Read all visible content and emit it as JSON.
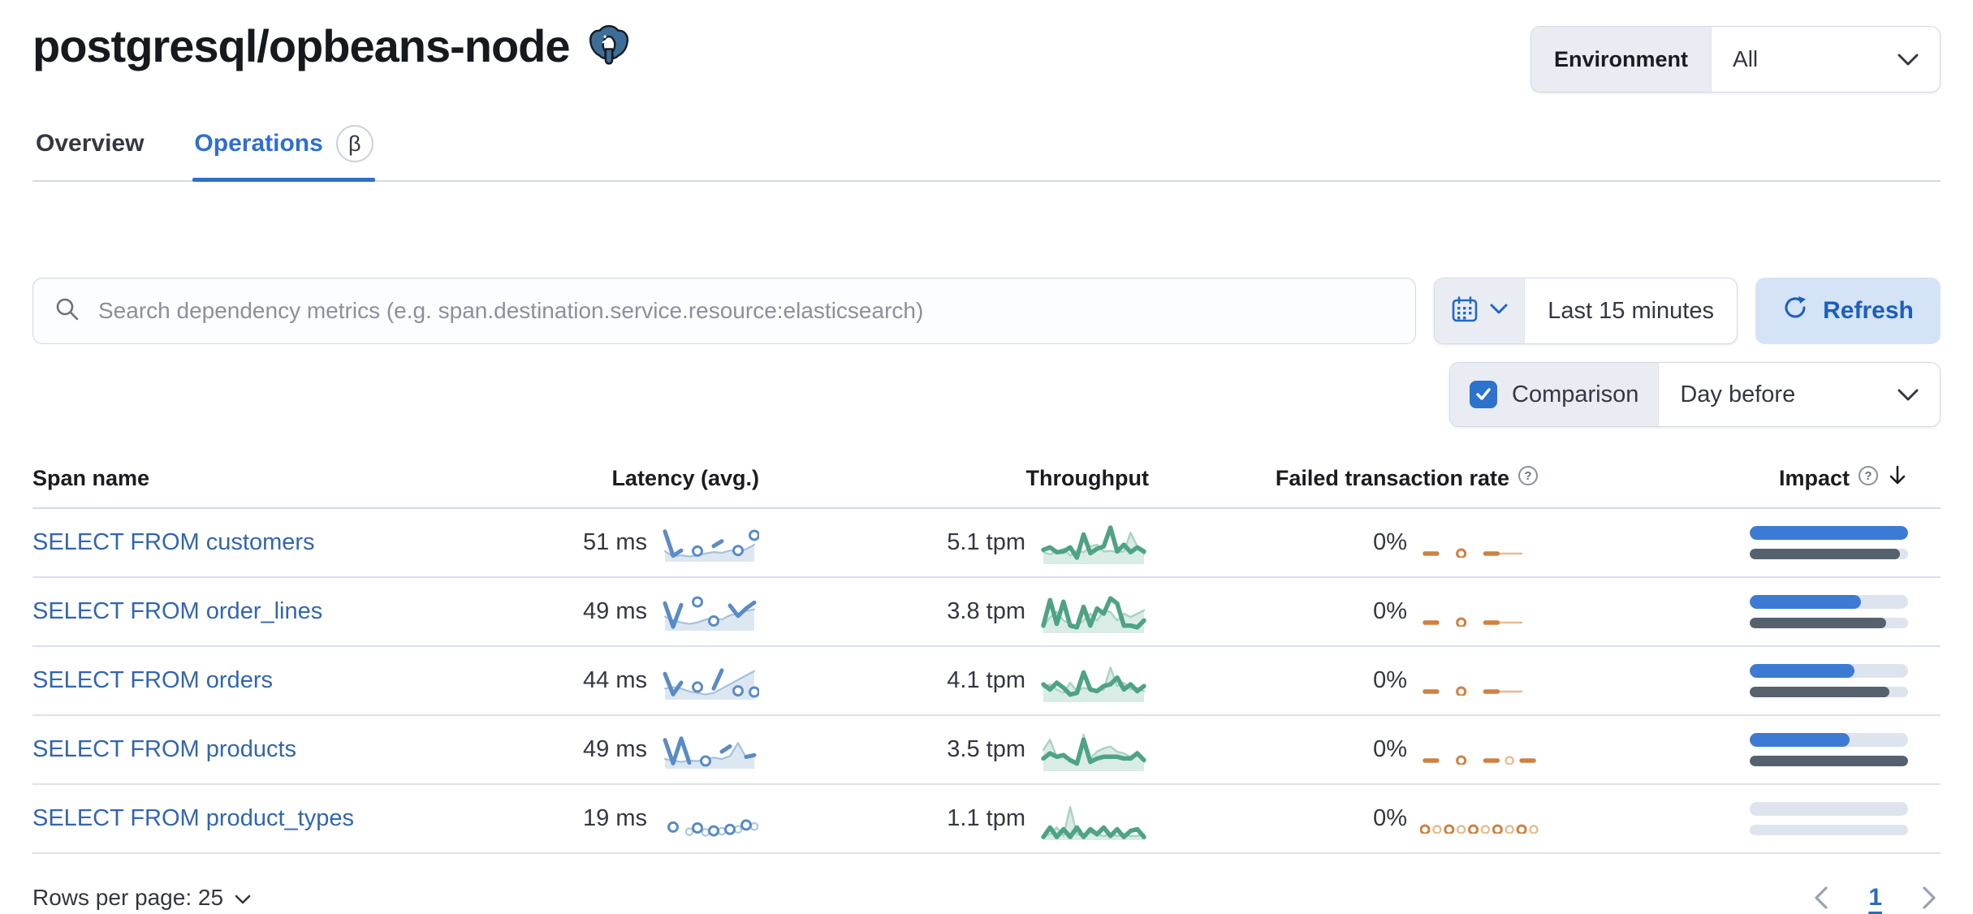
{
  "header": {
    "title": "postgresql/opbeans-node",
    "environment_label": "Environment",
    "environment_value": "All"
  },
  "tabs": {
    "overview": "Overview",
    "operations": "Operations",
    "beta_badge": "β"
  },
  "toolbar": {
    "search_placeholder": "Search dependency metrics (e.g. span.destination.service.resource:elasticsearch)",
    "time_range": "Last 15 minutes",
    "refresh_label": "Refresh",
    "comparison_label": "Comparison",
    "comparison_checked": true,
    "comparison_value": "Day before"
  },
  "table": {
    "columns": {
      "span_name": "Span name",
      "latency": "Latency (avg.)",
      "throughput": "Throughput",
      "failed_rate": "Failed transaction rate",
      "impact": "Impact"
    },
    "rows": [
      {
        "span_name": "SELECT FROM customers",
        "latency_value": "51 ms",
        "throughput_value": "5.1 tpm",
        "failed_rate_value": "0%",
        "impact_pct_current": 100,
        "impact_pct_previous": 95,
        "latency_spark": {
          "current": [
            0.95,
            0.12,
            0.3,
            null,
            0.28,
            null,
            0.45,
            0.62,
            null,
            0.3,
            null,
            0.82
          ],
          "comparison": [
            0.28,
            0.1,
            0.14,
            0.1,
            0.13,
            0.2,
            0.25,
            0.22,
            0.3,
            0.28,
            0.35,
            0.5
          ]
        },
        "throughput_spark": {
          "current": [
            0.35,
            0.42,
            0.28,
            0.3,
            0.42,
            0.12,
            0.8,
            0.25,
            0.38,
            0.45,
            1.0,
            0.3,
            0.5,
            0.28,
            0.42,
            0.3
          ],
          "comparison": [
            0.28,
            0.22,
            0.3,
            0.38,
            0.18,
            0.32,
            0.28,
            0.45,
            0.5,
            0.3,
            0.32,
            0.28,
            0.3,
            0.85,
            0.45,
            0.22
          ]
        },
        "failed_spark": {
          "current": [
            0,
            0,
            null,
            0,
            null,
            0,
            0,
            null,
            null,
            null
          ],
          "comparison": [
            null,
            null,
            null,
            null,
            null,
            null,
            0,
            0,
            0,
            null
          ]
        }
      },
      {
        "span_name": "SELECT FROM order_lines",
        "latency_value": "49 ms",
        "throughput_value": "3.8 tpm",
        "failed_rate_value": "0%",
        "impact_pct_current": 70,
        "impact_pct_previous": 86,
        "latency_spark": {
          "current": [
            0.85,
            0.05,
            0.8,
            null,
            0.9,
            null,
            0.25,
            null,
            0.78,
            0.42,
            0.68,
            0.88
          ],
          "comparison": [
            0.4,
            0.28,
            0.2,
            0.15,
            0.2,
            0.3,
            0.35,
            0.3,
            0.45,
            0.5,
            0.6,
            0.65
          ]
        },
        "throughput_spark": {
          "current": [
            0.15,
            0.9,
            0.2,
            0.85,
            0.15,
            0.1,
            0.7,
            0.15,
            0.65,
            0.5,
            0.95,
            0.8,
            0.15,
            0.15,
            0.1,
            0.3
          ],
          "comparison": [
            0.1,
            0.4,
            0.55,
            0.3,
            0.2,
            0.15,
            0.3,
            0.5,
            0.3,
            0.6,
            0.55,
            0.3,
            0.5,
            0.4,
            0.5,
            0.6
          ]
        },
        "failed_spark": {
          "current": [
            0,
            0,
            null,
            0,
            null,
            0,
            0,
            null,
            null,
            null
          ],
          "comparison": [
            null,
            null,
            null,
            null,
            null,
            null,
            0,
            0,
            0,
            null
          ]
        }
      },
      {
        "span_name": "SELECT FROM orders",
        "latency_value": "44 ms",
        "throughput_value": "4.1 tpm",
        "failed_rate_value": "0%",
        "impact_pct_current": 66,
        "impact_pct_previous": 88,
        "latency_spark": {
          "current": [
            0.8,
            0.1,
            0.5,
            null,
            0.35,
            null,
            0.3,
            0.92,
            null,
            0.22,
            null,
            0.18
          ],
          "comparison": [
            0.3,
            0.35,
            0.3,
            0.2,
            0.15,
            0.1,
            0.15,
            0.3,
            0.45,
            0.6,
            0.75,
            0.9
          ]
        },
        "throughput_spark": {
          "current": [
            0.45,
            0.3,
            0.5,
            0.35,
            0.15,
            0.2,
            0.8,
            0.3,
            0.25,
            0.4,
            0.45,
            0.65,
            0.3,
            0.45,
            0.25,
            0.4
          ],
          "comparison": [
            0.35,
            0.45,
            0.3,
            0.2,
            0.5,
            0.25,
            0.35,
            0.3,
            0.25,
            0.3,
            0.95,
            0.4,
            0.5,
            0.3,
            0.35,
            0.25
          ]
        },
        "failed_spark": {
          "current": [
            0,
            0,
            null,
            0,
            null,
            0,
            0,
            null,
            null,
            null
          ],
          "comparison": [
            null,
            null,
            null,
            null,
            null,
            null,
            0,
            0,
            0,
            null
          ]
        }
      },
      {
        "span_name": "SELECT FROM products",
        "latency_value": "49 ms",
        "throughput_value": "3.5 tpm",
        "failed_rate_value": "0%",
        "impact_pct_current": 63,
        "impact_pct_previous": 100,
        "latency_spark": {
          "current": [
            0.9,
            0.1,
            0.95,
            0.12,
            null,
            0.18,
            null,
            0.5,
            0.68,
            null,
            0.32,
            0.38
          ],
          "comparison": [
            0.25,
            0.2,
            0.15,
            0.2,
            0.18,
            0.25,
            0.3,
            0.25,
            0.35,
            0.8,
            0.3,
            0.4
          ]
        },
        "throughput_spark": {
          "current": [
            0.3,
            0.45,
            0.35,
            0.4,
            0.25,
            0.15,
            0.85,
            0.2,
            0.3,
            0.35,
            0.35,
            0.35,
            0.3,
            0.3,
            0.45,
            0.25
          ],
          "comparison": [
            0.55,
            0.85,
            0.35,
            0.4,
            0.3,
            0.2,
            1.0,
            0.3,
            0.5,
            0.6,
            0.65,
            0.5,
            0.45,
            0.35,
            0.5,
            0.3
          ]
        },
        "failed_spark": {
          "current": [
            0,
            0,
            null,
            0,
            null,
            0,
            0,
            null,
            0,
            0
          ],
          "comparison": [
            null,
            null,
            null,
            null,
            null,
            null,
            null,
            0,
            null,
            null
          ]
        }
      },
      {
        "span_name": "SELECT FROM product_types",
        "latency_value": "19 ms",
        "throughput_value": "1.1 tpm",
        "failed_rate_value": "0%",
        "impact_pct_current": 0,
        "impact_pct_previous": 0,
        "latency_spark": {
          "current": [
            null,
            0.28,
            null,
            null,
            0.25,
            null,
            0.15,
            null,
            0.2,
            null,
            0.35,
            null
          ],
          "comparison": [
            null,
            null,
            null,
            0.12,
            null,
            0.1,
            null,
            0.14,
            null,
            0.2,
            null,
            0.3
          ]
        },
        "throughput_spark": {
          "current": [
            0.02,
            0.3,
            0.02,
            0.25,
            0.02,
            0.3,
            0.02,
            0.25,
            0.1,
            0.3,
            0.05,
            0.25,
            0.02,
            0.2,
            0.25,
            0.02
          ],
          "comparison": [
            0.05,
            0.1,
            0.3,
            0.05,
            0.9,
            0.1,
            0.05,
            0.15,
            0.1,
            0.05,
            0.1,
            0.05,
            0.1,
            0.05,
            0.05,
            0.1
          ]
        },
        "failed_spark": {
          "current": [
            0,
            null,
            0,
            null,
            0,
            null,
            0,
            null,
            0,
            null
          ],
          "comparison": [
            null,
            0,
            null,
            0,
            null,
            0,
            null,
            0,
            null,
            0
          ]
        }
      }
    ]
  },
  "footer": {
    "rows_per_page": "Rows per page: 25",
    "page": "1"
  },
  "colors": {
    "link": "#3266ad",
    "tab_active": "#2f6fce",
    "latency_line": "#5a8bc4",
    "latency_comparison": "rgba(96,146,192,0.5)",
    "latency_area": "rgba(96,146,192,0.22)",
    "throughput_line": "#4fa385",
    "throughput_comparison": "#a9d3c3",
    "throughput_area": "rgba(84,168,136,0.22)",
    "failed_line": "#cf8140",
    "failed_comparison": "#e3bd92",
    "impact_current": "#3d7ad4",
    "impact_previous": "#56616e",
    "impact_track": "#dde4ee"
  }
}
